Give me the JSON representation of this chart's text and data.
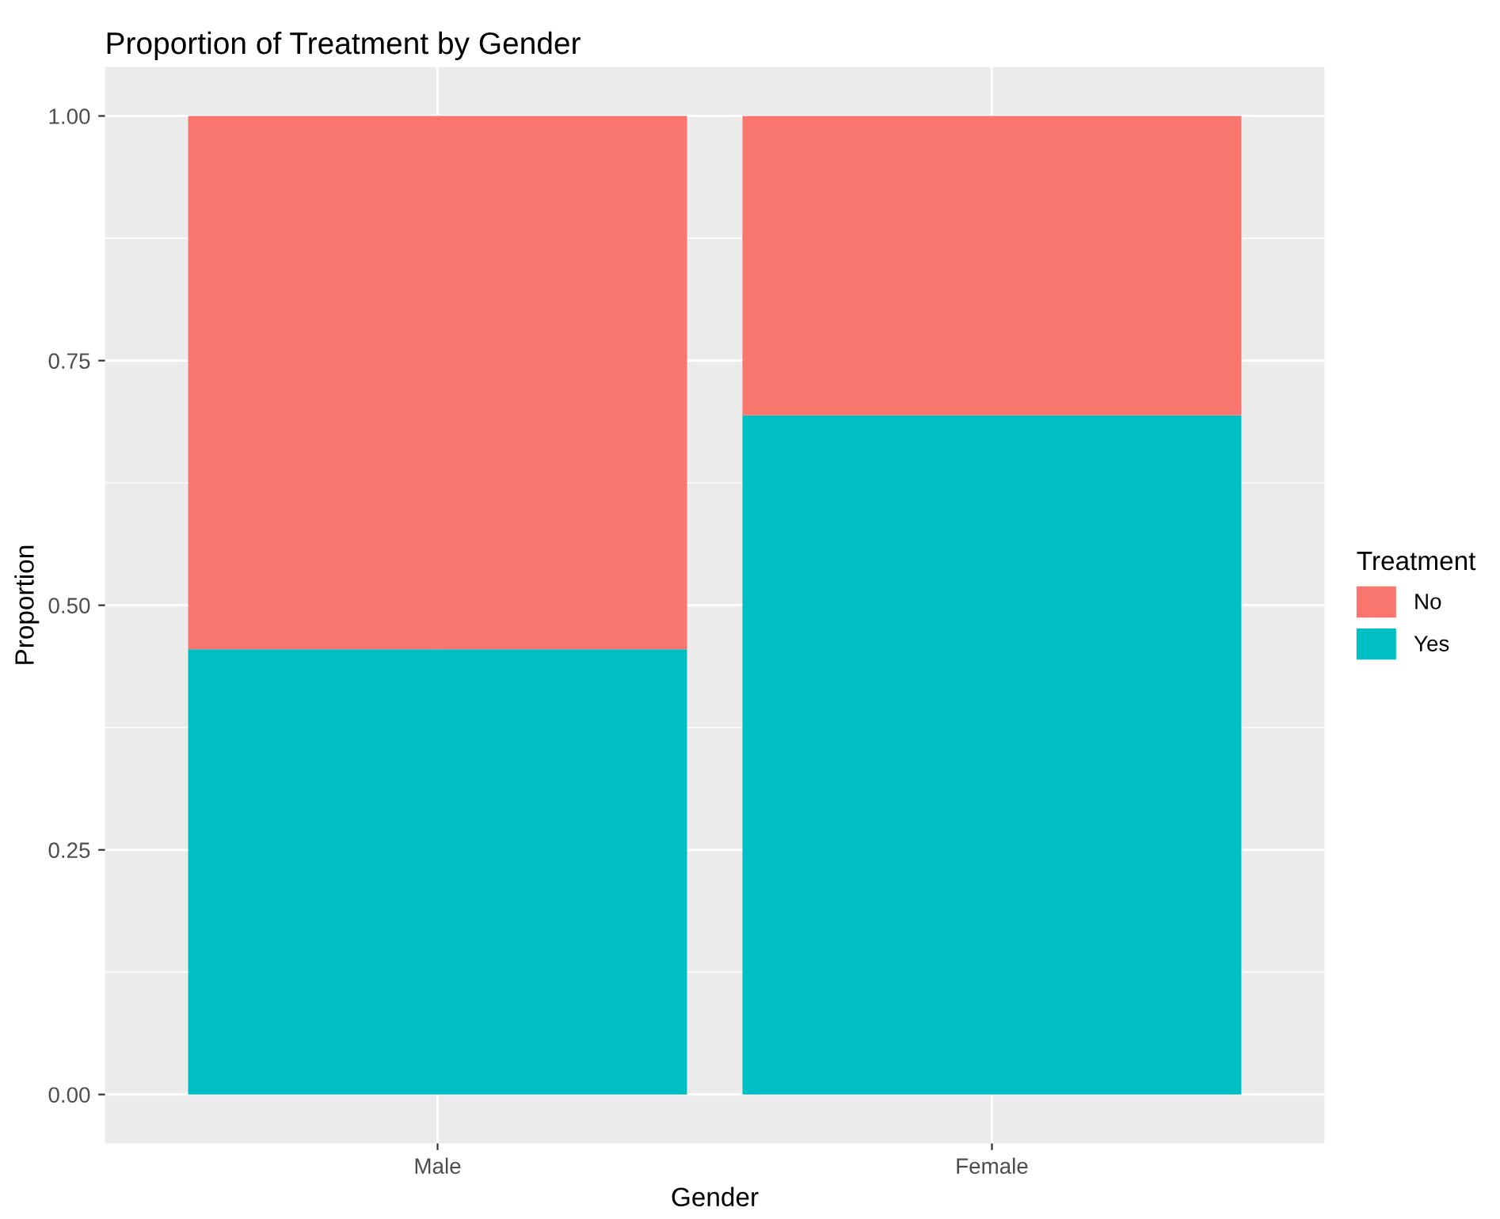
{
  "chart_data": {
    "type": "bar",
    "title": "Proportion of Treatment by Gender",
    "xlabel": "Gender",
    "ylabel": "Proportion",
    "legend_title": "Treatment",
    "categories": [
      "Male",
      "Female"
    ],
    "stacked": true,
    "series": [
      {
        "name": "Yes",
        "color": "#00bfc4",
        "values": [
          0.455,
          0.694
        ]
      },
      {
        "name": "No",
        "color": "#f8766d",
        "values": [
          0.545,
          0.306
        ]
      }
    ],
    "ylim": [
      -0.05,
      1.05
    ],
    "yticks": [
      {
        "value": 0,
        "label": "0.00"
      },
      {
        "value": 0.25,
        "label": "0.25"
      },
      {
        "value": 0.5,
        "label": "0.50"
      },
      {
        "value": 0.75,
        "label": "0.75"
      },
      {
        "value": 1,
        "label": "1.00"
      }
    ],
    "grid": true,
    "legend": "right"
  }
}
